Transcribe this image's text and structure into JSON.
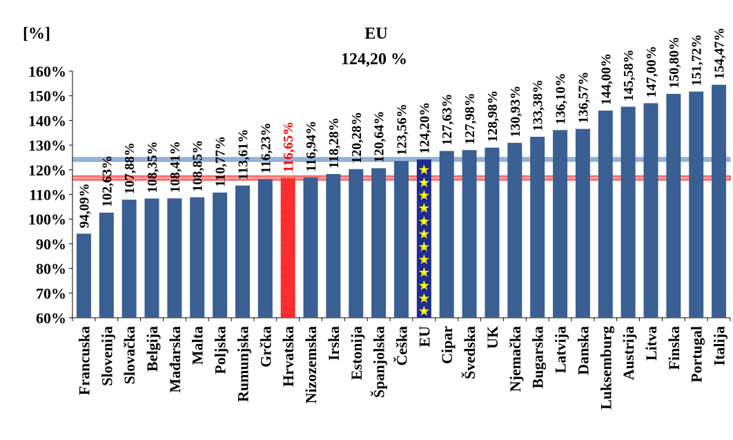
{
  "chart_data": {
    "type": "bar",
    "unit_label": "[%]",
    "categories": [
      "Francuska",
      "Slovenija",
      "Slovačka",
      "Belgija",
      "Mađarska",
      "Malta",
      "Poljska",
      "Rumunjska",
      "Grčka",
      "Hrvatska",
      "Nizozemska",
      "Irska",
      "Estonija",
      "Španjolska",
      "Češka",
      "EU",
      "Cipar",
      "Švedska",
      "UK",
      "Njemačka",
      "Bugarska",
      "Latvija",
      "Danska",
      "Luksemburg",
      "Austrija",
      "Litva",
      "Finska",
      "Portugal",
      "Italija"
    ],
    "values": [
      94.09,
      102.63,
      107.88,
      108.35,
      108.41,
      108.85,
      110.77,
      113.61,
      116.23,
      116.65,
      116.94,
      118.28,
      120.28,
      120.64,
      123.56,
      124.2,
      127.63,
      127.98,
      128.98,
      130.93,
      133.38,
      136.1,
      136.57,
      144.0,
      145.58,
      147.0,
      150.8,
      151.72,
      154.47
    ],
    "value_labels": [
      "94,09%",
      "102,63%",
      "107,88%",
      "108,35%",
      "108,41%",
      "108,85%",
      "110,77%",
      "113,61%",
      "116,23%",
      "116,65%",
      "116,94%",
      "118,28%",
      "120,28%",
      "120,64%",
      "123,56%",
      "124,20%",
      "127,63%",
      "127,98%",
      "128,98%",
      "130,93%",
      "133,38%",
      "136,10%",
      "136,57%",
      "144,00%",
      "145,58%",
      "147,00%",
      "150,80%",
      "151,72%",
      "154,47%"
    ],
    "y_ticks": [
      60,
      70,
      80,
      90,
      100,
      110,
      120,
      130,
      140,
      150,
      160
    ],
    "y_tick_labels": [
      "60%",
      "70%",
      "80%",
      "90%",
      "100%",
      "110%",
      "120%",
      "130%",
      "140%",
      "150%",
      "160%"
    ],
    "ylim": [
      60,
      160
    ],
    "grid": false,
    "highlight": {
      "category": "Hrvatska",
      "color": "#ff0000",
      "line_value": 116.65
    },
    "reference": {
      "category": "EU",
      "label": "EU",
      "value_label": "124,20 %",
      "line_value": 124.2,
      "line_color": "#95b3d7",
      "bar_color": "#1f2c8f",
      "star_color": "#ffff00"
    },
    "bar_color": "#3a5f93"
  }
}
